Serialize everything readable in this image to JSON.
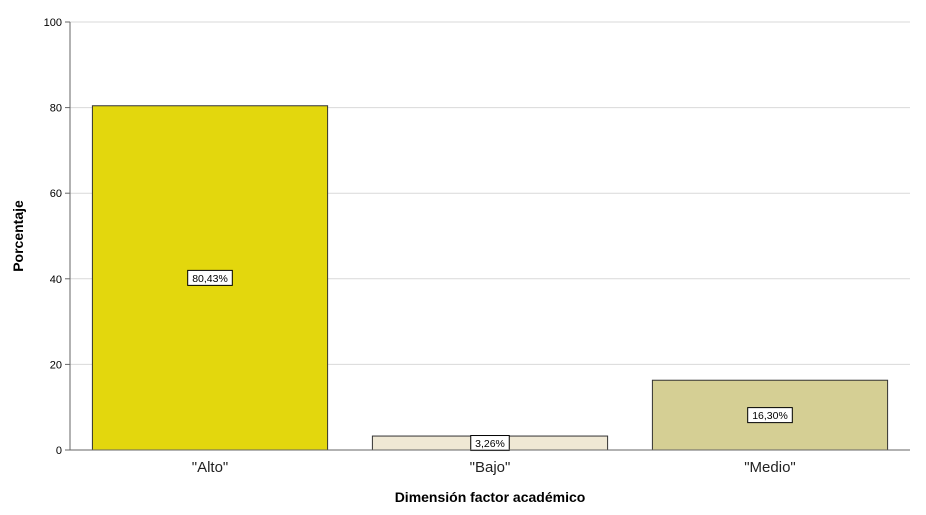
{
  "chart_data": {
    "type": "bar",
    "categories": [
      "\"Alto\"",
      "\"Bajo\"",
      "\"Medio\""
    ],
    "values": [
      80.43,
      3.26,
      16.3
    ],
    "data_labels": [
      "80,43%",
      "3,26%",
      "16,30%"
    ],
    "xlabel": "Dimensión factor académico",
    "ylabel": "Porcentaje",
    "ylim": [
      0,
      100
    ],
    "yticks": [
      0,
      20,
      40,
      60,
      80,
      100
    ],
    "grid": true,
    "colors": [
      "#e3d70d",
      "#efe8d4",
      "#d5cf94"
    ]
  }
}
